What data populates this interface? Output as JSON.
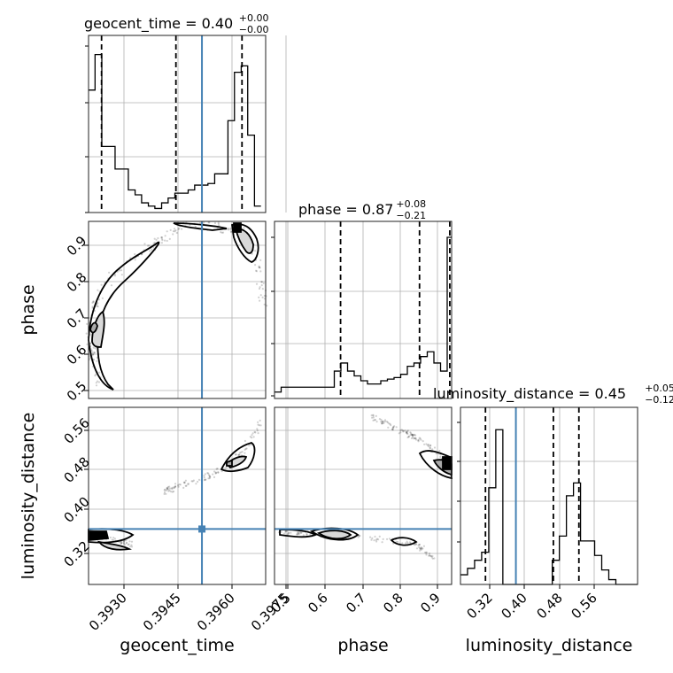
{
  "chart_data": {
    "type": "corner",
    "parameters": [
      "geocent_time",
      "phase",
      "luminosity_distance"
    ],
    "truth": {
      "geocent_time": 0.39629,
      "phase": null,
      "luminosity_distance": 0.381
    },
    "ranges": {
      "geocent_time": [
        0.39193,
        0.39874
      ],
      "phase": [
        0.475,
        0.955
      ],
      "luminosity_distance": [
        0.279,
        0.605
      ]
    },
    "ticks": {
      "geocent_time": [
        0.393,
        0.3945,
        0.396,
        0.3975
      ],
      "phase": [
        0.5,
        0.6,
        0.7,
        0.8,
        0.9
      ],
      "luminosity_distance": [
        0.32,
        0.4,
        0.48,
        0.56
      ]
    },
    "tick_labels": {
      "geocent_time": [
        "0.3930",
        "0.3945",
        "0.3960",
        "0.3975"
      ],
      "phase": [
        "0.5",
        "0.6",
        "0.7",
        "0.8",
        "0.9"
      ],
      "luminosity_distance": [
        "0.32",
        "0.40",
        "0.48",
        "0.56"
      ]
    },
    "axis_labels": {
      "geocent_time": "geocent_time",
      "phase": "phase",
      "luminosity_distance": "luminosity_distance"
    },
    "titles": [
      {
        "param": "geocent_time",
        "text": "geocent_time = 0.40",
        "plus": "+0.00",
        "minus": "−0.00"
      },
      {
        "param": "phase",
        "text": "phase = 0.87",
        "plus": "+0.08",
        "minus": "−0.21"
      },
      {
        "param": "luminosity_distance",
        "text": "luminosity_distance = 0.45",
        "plus": "+0.05",
        "minus": "−0.12"
      }
    ],
    "histograms": {
      "geocent_time": {
        "edges": [
          0.39193,
          0.39218,
          0.39244,
          0.3927,
          0.39295,
          0.39321,
          0.39346,
          0.39372,
          0.39397,
          0.39423,
          0.39448,
          0.39474,
          0.39499,
          0.39525,
          0.3955,
          0.39576,
          0.39601,
          0.39627,
          0.39652,
          0.39678,
          0.39703,
          0.39729,
          0.39754,
          0.3978,
          0.39805,
          0.39831,
          0.39856
        ],
        "counts": [
          0.76,
          0.98,
          0.41,
          0.41,
          0.27,
          0.27,
          0.14,
          0.11,
          0.06,
          0.04,
          0.025,
          0.06,
          0.09,
          0.12,
          0.12,
          0.14,
          0.17,
          0.17,
          0.18,
          0.24,
          0.24,
          0.57,
          0.87,
          0.91,
          0.48,
          0.04
        ],
        "quantiles": [
          0.39243,
          0.39529,
          0.39783
        ]
      },
      "phase": {
        "edges": [
          0.475,
          0.493,
          0.511,
          0.529,
          0.547,
          0.565,
          0.583,
          0.601,
          0.619,
          0.637,
          0.655,
          0.673,
          0.691,
          0.709,
          0.727,
          0.745,
          0.763,
          0.781,
          0.799,
          0.817,
          0.835,
          0.853,
          0.871,
          0.889,
          0.907,
          0.925,
          0.943,
          0.955
        ],
        "counts": [
          0.04,
          0.07,
          0.07,
          0.07,
          0.07,
          0.07,
          0.07,
          0.07,
          0.07,
          0.17,
          0.22,
          0.17,
          0.14,
          0.11,
          0.09,
          0.09,
          0.11,
          0.12,
          0.13,
          0.15,
          0.2,
          0.22,
          0.26,
          0.29,
          0.22,
          0.17,
          1.0
        ],
        "quantiles": [
          0.654,
          0.868,
          0.95
        ]
      },
      "luminosity_distance": {
        "edges": [
          0.279,
          0.292,
          0.305,
          0.318,
          0.331,
          0.344,
          0.357,
          0.37,
          0.383,
          0.396,
          0.409,
          0.422,
          0.435,
          0.448,
          0.461,
          0.474,
          0.487,
          0.5,
          0.513,
          0.526,
          0.539,
          0.552,
          0.565,
          0.578,
          0.591,
          0.605
        ],
        "counts": [
          0.06,
          0.1,
          0.15,
          0.2,
          0.6,
          0.96,
          0.0,
          0.0,
          0.0,
          0.0,
          0.0,
          0.0,
          0.0,
          0.15,
          0.3,
          0.55,
          0.63,
          0.27,
          0.27,
          0.18,
          0.09,
          0.03,
          0.0,
          0.0,
          0.0
        ],
        "quantiles": [
          0.325,
          0.45,
          0.497
        ]
      }
    },
    "grid": true
  }
}
